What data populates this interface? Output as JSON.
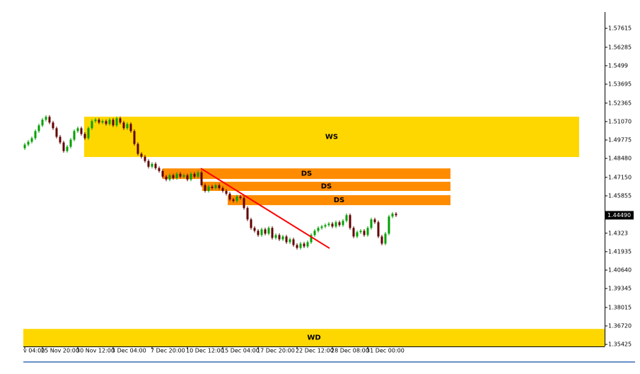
{
  "chart_data": {
    "type": "candlestick",
    "categories": [
      "v 04:00",
      null,
      null,
      null,
      null,
      "25 Nov 20:00",
      null,
      null,
      null,
      null,
      null,
      null,
      null,
      null,
      null,
      "30 Nov 12:00",
      null,
      null,
      null,
      null,
      null,
      null,
      null,
      null,
      null,
      "3 Dec 04:00",
      null,
      null,
      null,
      null,
      null,
      null,
      null,
      null,
      null,
      null,
      "7 Dec 20:00",
      null,
      null,
      null,
      null,
      null,
      null,
      null,
      null,
      null,
      "10 Dec 12:00",
      null,
      null,
      null,
      null,
      null,
      null,
      null,
      null,
      null,
      "15 Dec 04:00",
      null,
      null,
      null,
      null,
      null,
      null,
      null,
      null,
      null,
      "17 Dec 20:00",
      null,
      null,
      null,
      null,
      null,
      null,
      null,
      null,
      null,
      null,
      "22 Dec 12:00",
      null,
      null,
      null,
      null,
      null,
      null,
      null,
      null,
      null,
      "28 Dec 08:00",
      null,
      null,
      null,
      null,
      null,
      null,
      null,
      null,
      null,
      "31 Dec 00:00",
      null,
      null,
      null,
      null,
      null,
      null,
      null,
      null
    ],
    "open": [
      1.492,
      1.4945,
      1.4965,
      1.499,
      1.504,
      1.508,
      1.512,
      1.514,
      1.51,
      1.506,
      1.5,
      1.496,
      1.49,
      1.493,
      1.498,
      1.504,
      1.506,
      1.502,
      1.499,
      1.506,
      1.511,
      1.512,
      1.51,
      1.511,
      1.509,
      1.512,
      1.508,
      1.513,
      1.51,
      1.506,
      1.509,
      1.504,
      1.495,
      1.488,
      1.486,
      1.483,
      1.479,
      1.481,
      1.478,
      1.476,
      1.472,
      1.47,
      1.473,
      1.471,
      1.474,
      1.472,
      1.473,
      1.47,
      1.474,
      1.472,
      1.475,
      1.466,
      1.462,
      1.465,
      1.464,
      1.466,
      1.464,
      1.462,
      1.46,
      1.456,
      1.455,
      1.458,
      1.457,
      1.45,
      1.442,
      1.436,
      1.434,
      1.431,
      1.435,
      1.432,
      1.436,
      1.429,
      1.431,
      1.428,
      1.43,
      1.426,
      1.428,
      1.424,
      1.422,
      1.425,
      1.423,
      1.426,
      1.431,
      1.434,
      1.436,
      1.437,
      1.438,
      1.439,
      1.437,
      1.44,
      1.438,
      1.441,
      1.445,
      1.436,
      1.43,
      1.433,
      1.434,
      1.431,
      1.436,
      1.442,
      1.44,
      1.43,
      1.425,
      1.432,
      1.444,
      1.446
    ],
    "high": [
      1.4957,
      1.4977,
      1.5002,
      1.5052,
      1.5092,
      1.5132,
      1.5152,
      1.5152,
      1.5112,
      1.5072,
      1.5012,
      1.4972,
      1.4942,
      1.4992,
      1.5052,
      1.5072,
      1.5072,
      1.5032,
      1.5072,
      1.5122,
      1.5132,
      1.5132,
      1.5122,
      1.5122,
      1.5132,
      1.5132,
      1.5142,
      1.5142,
      1.5112,
      1.5102,
      1.5102,
      1.5052,
      1.4962,
      1.4892,
      1.4872,
      1.4842,
      1.4822,
      1.4822,
      1.4792,
      1.4772,
      1.4732,
      1.4742,
      1.4742,
      1.4752,
      1.4752,
      1.4742,
      1.4742,
      1.4752,
      1.4752,
      1.4762,
      1.4762,
      1.4672,
      1.4662,
      1.4662,
      1.4672,
      1.4672,
      1.4652,
      1.4632,
      1.4612,
      1.4572,
      1.4592,
      1.4592,
      1.4582,
      1.4512,
      1.4432,
      1.4372,
      1.4352,
      1.4362,
      1.4362,
      1.4372,
      1.4372,
      1.4322,
      1.4322,
      1.4312,
      1.4312,
      1.4292,
      1.4292,
      1.4252,
      1.4262,
      1.4262,
      1.4272,
      1.4322,
      1.4352,
      1.4372,
      1.4382,
      1.4392,
      1.4402,
      1.4402,
      1.4412,
      1.4412,
      1.4422,
      1.4462,
      1.4462,
      1.4372,
      1.4342,
      1.4352,
      1.4352,
      1.4372,
      1.4432,
      1.4432,
      1.4412,
      1.4312,
      1.4332,
      1.4452,
      1.4472,
      1.4472
    ],
    "low": [
      1.4908,
      1.4933,
      1.4953,
      1.4978,
      1.5028,
      1.5068,
      1.5108,
      1.5088,
      1.5048,
      1.4988,
      1.4948,
      1.4888,
      1.4888,
      1.4918,
      1.4968,
      1.5028,
      1.5008,
      1.4978,
      1.4978,
      1.5048,
      1.5098,
      1.5088,
      1.5088,
      1.5078,
      1.5078,
      1.5068,
      1.5068,
      1.5088,
      1.5048,
      1.5048,
      1.5028,
      1.4938,
      1.4868,
      1.4848,
      1.4818,
      1.4778,
      1.4778,
      1.4768,
      1.4748,
      1.4708,
      1.4688,
      1.4688,
      1.4698,
      1.4698,
      1.4708,
      1.4708,
      1.4688,
      1.4688,
      1.4708,
      1.4708,
      1.4648,
      1.4608,
      1.4608,
      1.4628,
      1.4628,
      1.4628,
      1.4608,
      1.4588,
      1.4548,
      1.4538,
      1.4538,
      1.4558,
      1.4488,
      1.4408,
      1.4348,
      1.4328,
      1.4298,
      1.4298,
      1.4308,
      1.4308,
      1.4278,
      1.4278,
      1.4268,
      1.4268,
      1.4248,
      1.4248,
      1.4228,
      1.4208,
      1.4208,
      1.4218,
      1.4218,
      1.4248,
      1.4298,
      1.4328,
      1.4348,
      1.4358,
      1.4368,
      1.4358,
      1.4358,
      1.4368,
      1.4368,
      1.4398,
      1.4348,
      1.4288,
      1.4288,
      1.4318,
      1.4298,
      1.4298,
      1.4348,
      1.4388,
      1.4288,
      1.4238,
      1.4238,
      1.4308,
      1.4428,
      1.4437
    ],
    "close": [
      1.4945,
      1.4965,
      1.499,
      1.504,
      1.508,
      1.512,
      1.514,
      1.51,
      1.506,
      1.5,
      1.496,
      1.49,
      1.493,
      1.498,
      1.504,
      1.506,
      1.502,
      1.499,
      1.506,
      1.511,
      1.512,
      1.51,
      1.511,
      1.509,
      1.512,
      1.508,
      1.513,
      1.51,
      1.506,
      1.509,
      1.504,
      1.495,
      1.488,
      1.486,
      1.483,
      1.479,
      1.481,
      1.478,
      1.476,
      1.472,
      1.47,
      1.473,
      1.471,
      1.474,
      1.472,
      1.473,
      1.47,
      1.474,
      1.472,
      1.475,
      1.466,
      1.462,
      1.465,
      1.464,
      1.466,
      1.464,
      1.462,
      1.46,
      1.456,
      1.455,
      1.458,
      1.457,
      1.45,
      1.442,
      1.436,
      1.434,
      1.431,
      1.435,
      1.432,
      1.436,
      1.429,
      1.431,
      1.428,
      1.43,
      1.426,
      1.428,
      1.424,
      1.422,
      1.425,
      1.423,
      1.426,
      1.431,
      1.434,
      1.436,
      1.437,
      1.438,
      1.439,
      1.437,
      1.44,
      1.438,
      1.441,
      1.445,
      1.436,
      1.43,
      1.433,
      1.434,
      1.431,
      1.436,
      1.442,
      1.44,
      1.43,
      1.425,
      1.432,
      1.444,
      1.446,
      1.4449
    ],
    "up_color": "#00a000",
    "down_color": "#600000",
    "xlim": [
      -0.4,
      164
    ],
    "ylim": [
      1.3528,
      1.5876
    ],
    "yticks": [
      1.57615,
      1.56285,
      1.5499,
      1.53695,
      1.52365,
      {
        "value": 1.5107,
        "label": "1.51070"
      },
      1.49775,
      {
        "value": 1.4848,
        "label": "1.48480"
      },
      {
        "value": 1.4715,
        "label": "1.47150"
      },
      1.45855,
      1.4323,
      1.41935,
      {
        "value": 1.4064,
        "label": "1.40640"
      },
      1.39345,
      1.38015,
      {
        "value": 1.3672,
        "label": "1.36720"
      },
      1.35425
    ],
    "current_price": {
      "value": 1.4449,
      "label": "1.44490"
    },
    "zones": [
      {
        "label": "WS",
        "color": "#ffd700",
        "x": [
          16.8,
          156.8
        ],
        "top": 1.5141,
        "bottom": 1.4858
      },
      {
        "label": "DS",
        "color": "#ff8c00",
        "x": [
          39,
          120.4
        ],
        "top": 1.4778,
        "bottom": 1.4704
      },
      {
        "label": "DS",
        "color": "#ff8c00",
        "x": [
          50.2,
          120.4
        ],
        "top": 1.4684,
        "bottom": 1.462
      },
      {
        "label": "DS",
        "color": "#ff8c00",
        "x": [
          57.4,
          120.4
        ],
        "top": 1.459,
        "bottom": 1.452
      },
      {
        "label": "WD",
        "color": "#ffd700",
        "x": [
          -0.4,
          164
        ],
        "top": 1.3651,
        "bottom": 1.3528
      }
    ],
    "trendline": {
      "color": "#ff0000",
      "x": [
        49.8,
        86.2
      ],
      "y": [
        1.4778,
        1.4217
      ]
    }
  }
}
